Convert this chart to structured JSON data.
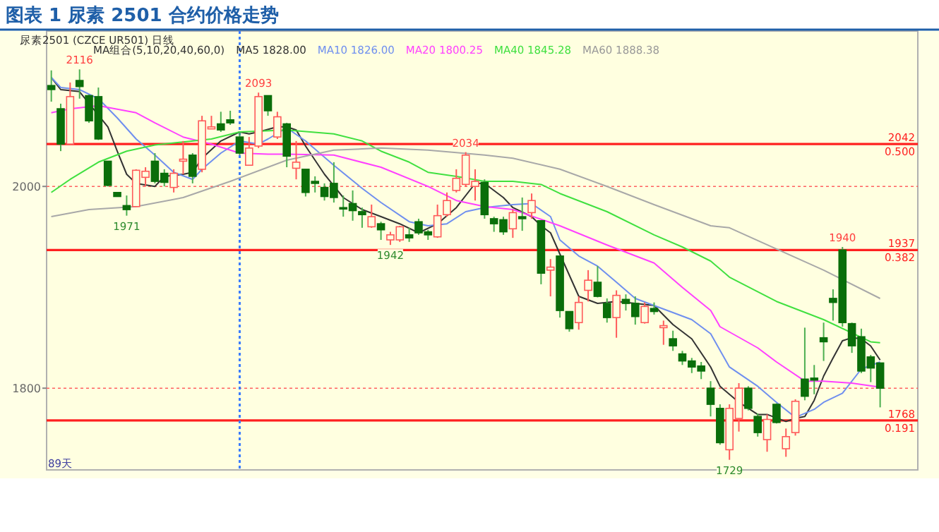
{
  "chart_data": {
    "type": "candlestick",
    "title": "图表 1 尿素 2501 合约价格走势",
    "subtitle": "尿素2501 (CZCE UR501)  日线",
    "legend_title": "MA组合(5,10,20,40,60,0)",
    "legend": "top",
    "grid": "y",
    "ylim": [
      1719,
      2154
    ],
    "yticks": [
      1800,
      2000
    ],
    "categories": [
      null,
      null,
      null,
      null,
      null,
      null,
      null,
      null,
      null,
      null,
      null,
      null,
      null,
      null,
      null,
      null,
      null,
      null,
      null,
      null,
      null,
      null,
      null,
      null,
      null,
      null,
      null,
      null,
      null,
      null,
      null,
      null,
      null,
      null,
      null,
      null,
      null,
      null,
      null,
      null,
      null,
      null,
      null,
      null,
      null,
      null,
      null,
      null,
      null,
      null,
      null,
      null,
      null,
      null,
      null,
      null,
      null,
      null,
      null,
      null,
      null,
      null,
      null,
      null,
      null,
      null,
      null,
      null,
      null,
      null,
      null,
      null,
      null,
      null,
      null,
      null,
      null,
      null,
      null,
      null,
      null,
      null,
      null,
      null,
      null,
      null,
      null,
      null,
      null
    ],
    "ohlc": [
      [
        2100,
        2115,
        2084,
        2096
      ],
      [
        2077,
        2082,
        2035,
        2042
      ],
      [
        2042,
        2103,
        2042,
        2089
      ],
      [
        2105,
        2116,
        2087,
        2099
      ],
      [
        2090,
        2091,
        2063,
        2065
      ],
      [
        2089,
        2098,
        2046,
        2047
      ],
      [
        2025,
        2025,
        2000,
        2001
      ],
      [
        1994,
        1994,
        1990,
        1990
      ],
      [
        1981,
        1991,
        1971,
        1977
      ],
      [
        1980,
        2017,
        1980,
        2016
      ],
      [
        2009,
        2019,
        2000,
        2015
      ],
      [
        2025,
        2033,
        2003,
        2005
      ],
      [
        2013,
        2017,
        2000,
        2004
      ],
      [
        1999,
        2017,
        1994,
        2013
      ],
      [
        2025,
        2045,
        2012,
        2027
      ],
      [
        2031,
        2033,
        2003,
        2010
      ],
      [
        2017,
        2070,
        2014,
        2065
      ],
      [
        2057,
        2070,
        2057,
        2059
      ],
      [
        2062,
        2074,
        2054,
        2056
      ],
      [
        2066,
        2075,
        2061,
        2063
      ],
      [
        2049,
        2054,
        2031,
        2033
      ],
      [
        2021,
        2049,
        2021,
        2038
      ],
      [
        2040,
        2093,
        2038,
        2089
      ],
      [
        2090,
        2090,
        2070,
        2075
      ],
      [
        2049,
        2074,
        2047,
        2069
      ],
      [
        2062,
        2063,
        2019,
        2030
      ],
      [
        2018,
        2045,
        2007,
        2024
      ],
      [
        2017,
        2017,
        1990,
        1994
      ],
      [
        2005,
        2010,
        1994,
        2003
      ],
      [
        1999,
        2003,
        1986,
        1990
      ],
      [
        2003,
        2024,
        1984,
        1989
      ],
      [
        1979,
        1991,
        1970,
        1978
      ],
      [
        1983,
        1996,
        1966,
        1976
      ],
      [
        1975,
        1979,
        1959,
        1972
      ],
      [
        1960,
        1982,
        1959,
        1970
      ],
      [
        1963,
        1965,
        1947,
        1957
      ],
      [
        1947,
        1955,
        1942,
        1952
      ],
      [
        1947,
        1961,
        1945,
        1960
      ],
      [
        1952,
        1959,
        1945,
        1949
      ],
      [
        1965,
        1968,
        1952,
        1954
      ],
      [
        1955,
        1957,
        1947,
        1952
      ],
      [
        1950,
        1982,
        1949,
        1971
      ],
      [
        1972,
        1994,
        1970,
        1986
      ],
      [
        1996,
        2017,
        1994,
        2008
      ],
      [
        2002,
        2034,
        2000,
        2031
      ],
      [
        2000,
        2017,
        1986,
        2005
      ],
      [
        2004,
        2007,
        1968,
        1972
      ],
      [
        1968,
        1970,
        1955,
        1963
      ],
      [
        1967,
        1970,
        1952,
        1955
      ],
      [
        1958,
        1977,
        1949,
        1974
      ],
      [
        1970,
        1989,
        1956,
        1968
      ],
      [
        1974,
        1993,
        1968,
        1986
      ],
      [
        1966,
        1966,
        1903,
        1914
      ],
      [
        1917,
        1928,
        1891,
        1920
      ],
      [
        1931,
        1931,
        1870,
        1877
      ],
      [
        1876,
        1876,
        1856,
        1859
      ],
      [
        1865,
        1891,
        1858,
        1885
      ],
      [
        1897,
        1917,
        1886,
        1907
      ],
      [
        1905,
        1921,
        1890,
        1891
      ],
      [
        1884,
        1889,
        1865,
        1870
      ],
      [
        1870,
        1897,
        1850,
        1892
      ],
      [
        1888,
        1893,
        1877,
        1884
      ],
      [
        1884,
        1891,
        1863,
        1871
      ],
      [
        1865,
        1885,
        1864,
        1881
      ],
      [
        1879,
        1885,
        1873,
        1876
      ],
      [
        1860,
        1867,
        1843,
        1862
      ],
      [
        1849,
        1857,
        1837,
        1842
      ],
      [
        1834,
        1837,
        1823,
        1827
      ],
      [
        1827,
        1830,
        1815,
        1821
      ],
      [
        1822,
        1826,
        1809,
        1817
      ],
      [
        1800,
        1807,
        1772,
        1784
      ],
      [
        1780,
        1784,
        1744,
        1746
      ],
      [
        1739,
        1784,
        1729,
        1780
      ],
      [
        1770,
        1805,
        1757,
        1800
      ],
      [
        1800,
        1802,
        1778,
        1780
      ],
      [
        1772,
        1775,
        1752,
        1756
      ],
      [
        1749,
        1774,
        1737,
        1769
      ],
      [
        1784,
        1785,
        1765,
        1766
      ],
      [
        1740,
        1760,
        1732,
        1752
      ],
      [
        1756,
        1789,
        1753,
        1787
      ],
      [
        1809,
        1860,
        1788,
        1792
      ],
      [
        1810,
        1823,
        1794,
        1808
      ],
      [
        1850,
        1865,
        1827,
        1846
      ],
      [
        1889,
        1898,
        1867,
        1885
      ],
      [
        1937,
        1940,
        1861,
        1865
      ],
      [
        1864,
        1865,
        1835,
        1842
      ],
      [
        1851,
        1859,
        1815,
        1817
      ],
      [
        1831,
        1833,
        1806,
        1820
      ],
      [
        1825,
        1825,
        1781,
        1800
      ]
    ],
    "series": [
      {
        "name": "MA5 1828.00",
        "type": "line",
        "color": "#333333",
        "values": [
          2108,
          2096,
          null,
          2094,
          null,
          null,
          2059,
          2035,
          2012,
          2003,
          null,
          2000,
          2010,
          null,
          2012,
          2014,
          2028,
          null,
          2045,
          null,
          2054,
          2052,
          2054,
          null,
          2059,
          2059,
          2056,
          2040,
          null,
          2012,
          null,
          1989,
          null,
          1977,
          null,
          1970,
          null,
          1963,
          null,
          1954,
          null,
          1963,
          null,
          1979,
          null,
          2003,
          2003,
          null,
          1989,
          1979,
          null,
          1970,
          1961,
          1954,
          1933,
          null,
          1891,
          null,
          1884,
          null,
          1886,
          null,
          1884,
          null,
          1882,
          null,
          1863,
          null,
          1849,
          null,
          1821,
          1802,
          null,
          1786,
          null,
          1774,
          1774,
          null,
          1767,
          1770,
          1772,
          1788,
          1812,
          1830,
          1847,
          1850,
          1849,
          1842,
          1828
        ]
      },
      {
        "name": "MA10 1826.00",
        "type": "line",
        "color": "#6f8fef",
        "values": [
          2108,
          2098,
          null,
          2096,
          null,
          2087,
          null,
          2068,
          null,
          2047,
          null,
          2031,
          null,
          2014,
          null,
          2007,
          2017,
          null,
          2033,
          null,
          2045,
          null,
          2042,
          2047,
          null,
          2058,
          null,
          2045,
          null,
          null,
          2021,
          null,
          null,
          1998,
          null,
          1984,
          null,
          null,
          1965,
          null,
          1961,
          null,
          1963,
          null,
          1975,
          null,
          1979,
          1980,
          null,
          1982,
          null,
          1983,
          null,
          1970,
          1947,
          null,
          1931,
          null,
          1921,
          null,
          1905,
          null,
          1889,
          null,
          1882,
          null,
          1875,
          null,
          1868,
          null,
          1854,
          null,
          1821,
          null,
          null,
          1802,
          null,
          1786,
          null,
          1771,
          null,
          1779,
          1786,
          null,
          1795,
          null,
          1819,
          null,
          1826
        ]
      },
      {
        "name": "MA20 1800.25",
        "type": "line",
        "color": "#ff40ff",
        "values": [
          2073,
          null,
          2077,
          null,
          null,
          2080,
          null,
          null,
          null,
          2073,
          null,
          2063,
          null,
          null,
          2049,
          null,
          null,
          2042,
          null,
          null,
          2033,
          null,
          null,
          2032,
          null,
          2032,
          null,
          null,
          null,
          null,
          2031,
          null,
          null,
          null,
          null,
          2019,
          null,
          null,
          null,
          null,
          2000,
          null,
          null,
          1986,
          null,
          null,
          1980,
          null,
          null,
          1977,
          null,
          null,
          null,
          null,
          1961,
          null,
          null,
          null,
          null,
          1942,
          null,
          null,
          null,
          null,
          1924,
          null,
          null,
          1900,
          null,
          null,
          1877,
          1861,
          null,
          null,
          null,
          1840,
          null,
          1826,
          null,
          null,
          1807,
          null,
          1807,
          null,
          null,
          1805,
          null,
          null,
          1801
        ]
      },
      {
        "name": "MA40 1845.28",
        "type": "line",
        "color": "#40e040",
        "values": [
          1994,
          null,
          2007,
          null,
          null,
          2024,
          null,
          null,
          2035,
          null,
          null,
          2041,
          null,
          null,
          2044,
          null,
          null,
          2047,
          null,
          null,
          2054,
          null,
          null,
          null,
          null,
          2056,
          null,
          null,
          null,
          null,
          2052,
          null,
          null,
          2045,
          null,
          2035,
          null,
          null,
          2024,
          null,
          2014,
          null,
          null,
          2010,
          null,
          null,
          2005,
          null,
          null,
          2005,
          null,
          null,
          2002,
          null,
          1993,
          null,
          null,
          null,
          null,
          1975,
          null,
          null,
          null,
          null,
          1952,
          null,
          null,
          1940,
          null,
          null,
          1926,
          null,
          1910,
          null,
          null,
          null,
          null,
          1886,
          null,
          null,
          null,
          null,
          1868,
          null,
          null,
          null,
          null,
          1846,
          1845
        ]
      },
      {
        "name": "MA60 1888.38",
        "type": "line",
        "color": "#a8a8a8",
        "values": [
          1970,
          null,
          null,
          null,
          1977,
          null,
          null,
          null,
          null,
          1980,
          null,
          null,
          null,
          null,
          1989,
          null,
          null,
          null,
          null,
          2005,
          null,
          null,
          null,
          null,
          null,
          2026,
          null,
          null,
          null,
          null,
          2036,
          null,
          null,
          null,
          null,
          2038,
          null,
          null,
          null,
          null,
          2036,
          null,
          null,
          null,
          null,
          null,
          2031,
          null,
          null,
          2028,
          null,
          null,
          null,
          null,
          2017,
          null,
          null,
          null,
          null,
          2000,
          null,
          null,
          null,
          null,
          1982,
          null,
          null,
          null,
          null,
          null,
          1961,
          null,
          1959,
          null,
          null,
          null,
          null,
          1938,
          null,
          null,
          null,
          null,
          1917,
          null,
          null,
          null,
          null,
          null,
          1889
        ]
      }
    ],
    "ref_lines": [
      {
        "axis": "y",
        "value": 2042,
        "label": "2042 0.500",
        "color": "#ff2020"
      },
      {
        "axis": "y",
        "value": 1937,
        "label": "1937 0.382",
        "color": "#ff2020"
      },
      {
        "axis": "y",
        "value": 1768,
        "label": "1768 0.191",
        "color": "#ff2020"
      }
    ],
    "annotations": [
      {
        "text": "2116",
        "y": 2116
      },
      {
        "text": "1971",
        "y": 1971
      },
      {
        "text": "2093",
        "y": 2093
      },
      {
        "text": "1942",
        "y": 1942
      },
      {
        "text": "2034",
        "y": 2034
      },
      {
        "text": "1729",
        "y": 1729
      },
      {
        "text": "1940",
        "y": 1940
      },
      "89天"
    ]
  }
}
